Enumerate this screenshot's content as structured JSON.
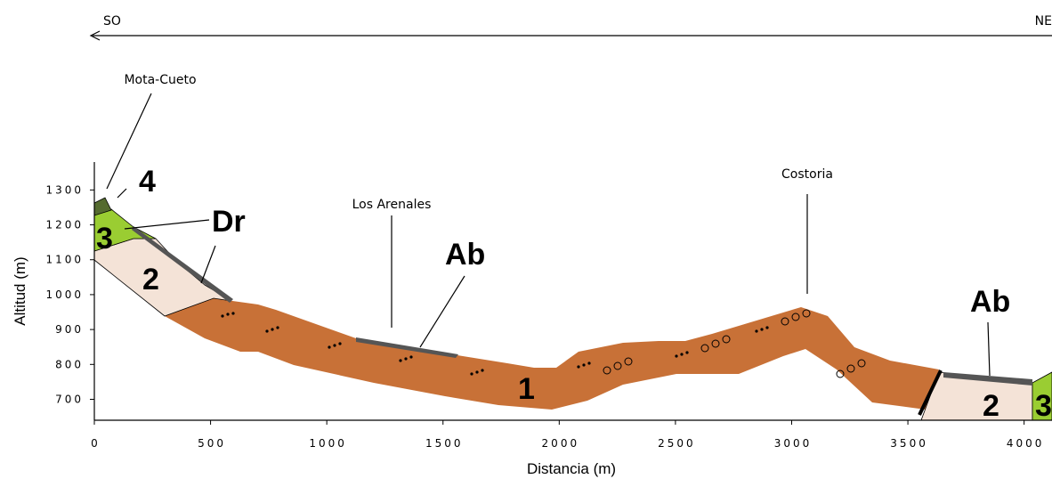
{
  "header": {
    "left": "SO",
    "right": "NE"
  },
  "places": {
    "mota_cueto": "Mota-Cueto",
    "los_arenales": "Los Arenales",
    "costoria": "Costoria"
  },
  "units": [
    "4",
    "3",
    "Dr",
    "2",
    "Ab",
    "1",
    "Ab",
    "2",
    "3"
  ],
  "axes": {
    "x": {
      "label": "Distancia (m)",
      "lim": [
        0,
        4120
      ],
      "ticks": [
        0,
        500,
        1000,
        1500,
        2000,
        2500,
        3000,
        3500,
        4000
      ]
    },
    "y": {
      "label": "Altitud (m)",
      "lim": [
        640,
        1380
      ],
      "ticks": [
        700,
        800,
        900,
        1000,
        1100,
        1200,
        1300
      ]
    }
  }
}
